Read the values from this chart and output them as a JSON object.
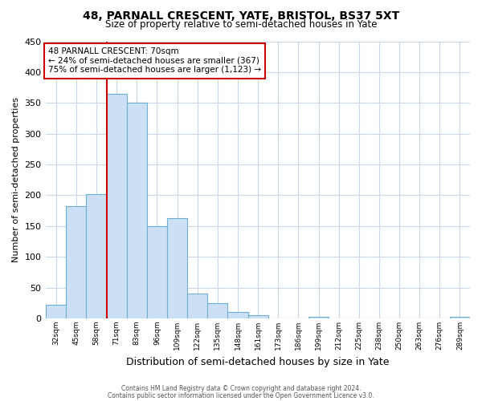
{
  "title": "48, PARNALL CRESCENT, YATE, BRISTOL, BS37 5XT",
  "subtitle": "Size of property relative to semi-detached houses in Yate",
  "xlabel": "Distribution of semi-detached houses by size in Yate",
  "ylabel": "Number of semi-detached properties",
  "footer_line1": "Contains HM Land Registry data © Crown copyright and database right 2024.",
  "footer_line2": "Contains public sector information licensed under the Open Government Licence v3.0.",
  "bin_labels": [
    "32sqm",
    "45sqm",
    "58sqm",
    "71sqm",
    "83sqm",
    "96sqm",
    "109sqm",
    "122sqm",
    "135sqm",
    "148sqm",
    "161sqm",
    "173sqm",
    "186sqm",
    "199sqm",
    "212sqm",
    "225sqm",
    "238sqm",
    "250sqm",
    "263sqm",
    "276sqm",
    "289sqm"
  ],
  "bar_values": [
    22,
    183,
    202,
    365,
    350,
    150,
    163,
    40,
    25,
    10,
    5,
    0,
    0,
    3,
    0,
    0,
    0,
    0,
    0,
    0,
    2
  ],
  "bar_color": "#cce0f5",
  "bar_edge_color": "#6baed6",
  "highlight_line_color": "#cc0000",
  "highlight_bin_index": 3,
  "annotation_title": "48 PARNALL CRESCENT: 70sqm",
  "annotation_line2": "← 24% of semi-detached houses are smaller (367)",
  "annotation_line3": "75% of semi-detached houses are larger (1,123) →",
  "annotation_box_color": "#ffffff",
  "annotation_box_edge": "#cc0000",
  "ylim": [
    0,
    450
  ],
  "yticks": [
    0,
    50,
    100,
    150,
    200,
    250,
    300,
    350,
    400,
    450
  ],
  "background_color": "#ffffff",
  "grid_color": "#c8d8e8"
}
